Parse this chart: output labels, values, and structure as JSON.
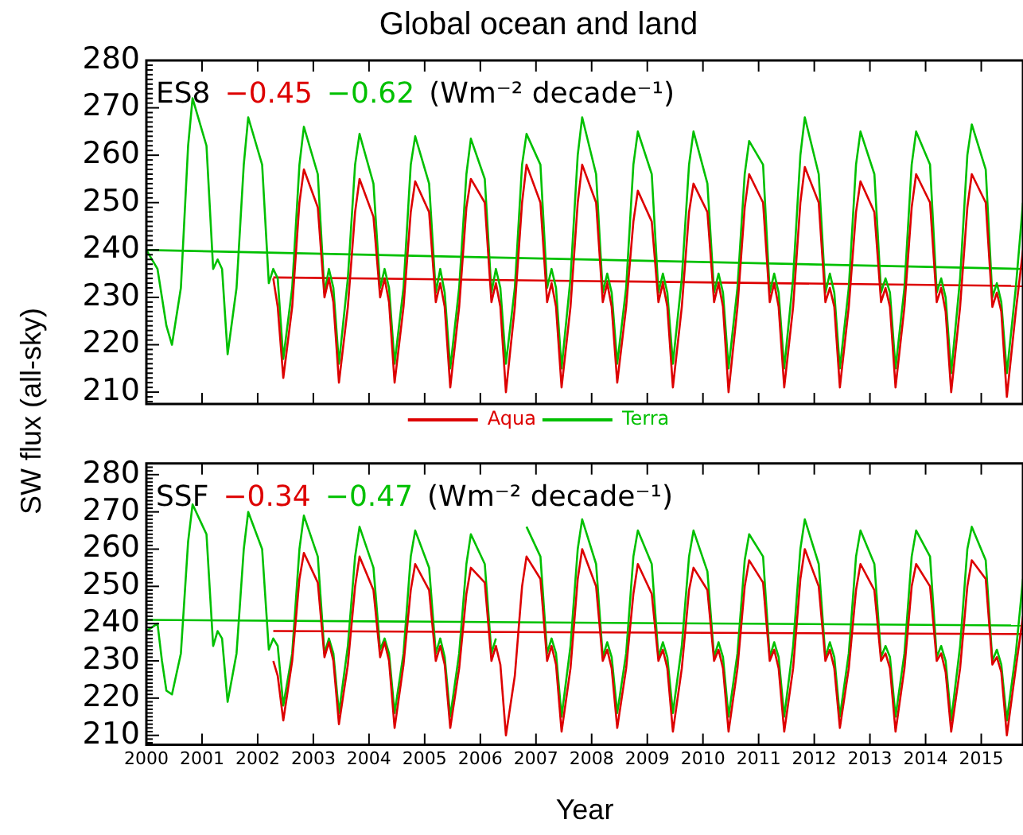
{
  "chart_data": [
    {
      "type": "line",
      "title": "Global ocean and land",
      "ylabel": "SW flux (all-sky)",
      "annotations": [
        "ES8",
        "−0.45",
        "−0.62",
        "(Wm⁻² decade⁻¹)"
      ],
      "xlim": [
        2000,
        2015.75
      ],
      "xticks": [
        2000,
        2001,
        2002,
        2003,
        2004,
        2005,
        2006,
        2007,
        2008,
        2009,
        2010,
        2011,
        2012,
        2013,
        2014,
        2015
      ],
      "ylim": [
        207.5,
        280
      ],
      "yticks": [
        210,
        220,
        230,
        240,
        250,
        260,
        270,
        280
      ],
      "grid": false,
      "legend": "bottom",
      "tick_labels": "y",
      "marker": "none",
      "line_style": "solid",
      "x": [
        2000,
        2000.2,
        2000.28,
        2000.36,
        2000.46,
        2000.62,
        2000.75,
        2000.83,
        2001.08,
        2001.2,
        2001.28,
        2001.36,
        2001.46,
        2001.62,
        2001.75,
        2001.83,
        2002.08,
        2002.2,
        2002.28,
        2002.36,
        2002.46,
        2002.62,
        2002.75,
        2002.83,
        2003.08,
        2003.2,
        2003.28,
        2003.36,
        2003.46,
        2003.62,
        2003.75,
        2003.83,
        2004.08,
        2004.2,
        2004.28,
        2004.36,
        2004.46,
        2004.62,
        2004.75,
        2004.83,
        2005.08,
        2005.2,
        2005.28,
        2005.36,
        2005.46,
        2005.62,
        2005.75,
        2005.83,
        2006.08,
        2006.2,
        2006.28,
        2006.36,
        2006.46,
        2006.62,
        2006.75,
        2006.83,
        2007.08,
        2007.2,
        2007.28,
        2007.36,
        2007.46,
        2007.62,
        2007.75,
        2007.83,
        2008.08,
        2008.2,
        2008.28,
        2008.36,
        2008.46,
        2008.62,
        2008.75,
        2008.83,
        2009.08,
        2009.2,
        2009.28,
        2009.36,
        2009.46,
        2009.62,
        2009.75,
        2009.83,
        2010.08,
        2010.2,
        2010.28,
        2010.36,
        2010.46,
        2010.62,
        2010.75,
        2010.83,
        2011.08,
        2011.2,
        2011.28,
        2011.36,
        2011.46,
        2011.62,
        2011.75,
        2011.83,
        2012.08,
        2012.2,
        2012.28,
        2012.36,
        2012.46,
        2012.62,
        2012.75,
        2012.83,
        2013.08,
        2013.2,
        2013.28,
        2013.36,
        2013.46,
        2013.62,
        2013.75,
        2013.83,
        2014.08,
        2014.2,
        2014.28,
        2014.36,
        2014.46,
        2014.62,
        2014.75,
        2014.83,
        2015.08,
        2015.2,
        2015.28,
        2015.36,
        2015.46,
        2015.62,
        2015.75
      ],
      "series": [
        {
          "name": "Aqua",
          "color": "#dd0000",
          "values": [
            null,
            null,
            null,
            null,
            null,
            null,
            null,
            null,
            null,
            null,
            null,
            null,
            null,
            null,
            null,
            null,
            null,
            null,
            234,
            228,
            213,
            228,
            250,
            257,
            249,
            230,
            234,
            229,
            212,
            228,
            248,
            255,
            247,
            230,
            234,
            229,
            212,
            228,
            248,
            254.5,
            248,
            229,
            233,
            228,
            211,
            228,
            249,
            255,
            250,
            229,
            233,
            228,
            210,
            228,
            250,
            258,
            250,
            229,
            233,
            228,
            211,
            228,
            250,
            258,
            250,
            229,
            233,
            228,
            212,
            228,
            246,
            252.5,
            246,
            229,
            233,
            228,
            211,
            228,
            248,
            254,
            248,
            229,
            233,
            228,
            210,
            228,
            249,
            256,
            250,
            229,
            233,
            228,
            211,
            228,
            250,
            257.5,
            250,
            229,
            232,
            228,
            211,
            228,
            248,
            254.5,
            248,
            229,
            232,
            228,
            211,
            228,
            249,
            256,
            250,
            229,
            232,
            227,
            210,
            228,
            249,
            256,
            250,
            228,
            231,
            227,
            209,
            227,
            240
          ]
        },
        {
          "name": "Terra",
          "color": "#00c000",
          "values": [
            240,
            236,
            230,
            224,
            220,
            232,
            262,
            272,
            262,
            236,
            238,
            236,
            218,
            232,
            258,
            268,
            258,
            233,
            236,
            234,
            217,
            232,
            258,
            266,
            256,
            231,
            236,
            232,
            216,
            234,
            258,
            264.5,
            254,
            232,
            236,
            232,
            216,
            232,
            258,
            264,
            254,
            231,
            236,
            231,
            215,
            232,
            256,
            263.5,
            255,
            231,
            236,
            232,
            216,
            232,
            258,
            264.5,
            258,
            232,
            236,
            232,
            215,
            234,
            260,
            268,
            256,
            231,
            235,
            231,
            216,
            232,
            258,
            265,
            256,
            231,
            235,
            231,
            216,
            234,
            258,
            265,
            254,
            231,
            235,
            231,
            215,
            232,
            256,
            263,
            258,
            231,
            235,
            231,
            215,
            234,
            260,
            268,
            256,
            231,
            235,
            231,
            215,
            232,
            258,
            265,
            256,
            231,
            234,
            231,
            215,
            232,
            258,
            265,
            258,
            231,
            234,
            230,
            214,
            234,
            260,
            266.5,
            257,
            230,
            233,
            229,
            214,
            232,
            250
          ]
        },
        {
          "color": "#dd0000",
          "x": [
            2002.28,
            2015.75
          ],
          "values": [
            234.2,
            232.4
          ]
        },
        {
          "color": "#00c000",
          "x": [
            2000,
            2015.75
          ],
          "values": [
            240,
            236
          ]
        }
      ]
    },
    {
      "type": "line",
      "xlabel": "Year",
      "annotations": [
        "SSF",
        "−0.34",
        "−0.47",
        "(Wm⁻² decade⁻¹)"
      ],
      "xlim": [
        2000,
        2015.75
      ],
      "xticks": [
        2000,
        2001,
        2002,
        2003,
        2004,
        2005,
        2006,
        2007,
        2008,
        2009,
        2010,
        2011,
        2012,
        2013,
        2014,
        2015
      ],
      "ylim": [
        207.5,
        283
      ],
      "yticks": [
        210,
        220,
        230,
        240,
        250,
        260,
        270,
        280
      ],
      "grid": false,
      "marker": "none",
      "line_style": "solid",
      "x": [
        2000,
        2000.2,
        2000.28,
        2000.36,
        2000.46,
        2000.62,
        2000.75,
        2000.83,
        2001.08,
        2001.2,
        2001.28,
        2001.36,
        2001.46,
        2001.62,
        2001.75,
        2001.83,
        2002.08,
        2002.2,
        2002.28,
        2002.36,
        2002.46,
        2002.62,
        2002.75,
        2002.83,
        2003.08,
        2003.2,
        2003.28,
        2003.36,
        2003.46,
        2003.62,
        2003.75,
        2003.83,
        2004.08,
        2004.2,
        2004.28,
        2004.36,
        2004.46,
        2004.62,
        2004.75,
        2004.83,
        2005.08,
        2005.2,
        2005.28,
        2005.36,
        2005.46,
        2005.62,
        2005.75,
        2005.83,
        2006.08,
        2006.2,
        2006.28,
        2006.36,
        2006.46,
        2006.62,
        2006.75,
        2006.83,
        2007.08,
        2007.2,
        2007.28,
        2007.36,
        2007.46,
        2007.62,
        2007.75,
        2007.83,
        2008.08,
        2008.2,
        2008.28,
        2008.36,
        2008.46,
        2008.62,
        2008.75,
        2008.83,
        2009.08,
        2009.2,
        2009.28,
        2009.36,
        2009.46,
        2009.62,
        2009.75,
        2009.83,
        2010.08,
        2010.2,
        2010.28,
        2010.36,
        2010.46,
        2010.62,
        2010.75,
        2010.83,
        2011.08,
        2011.2,
        2011.28,
        2011.36,
        2011.46,
        2011.62,
        2011.75,
        2011.83,
        2012.08,
        2012.2,
        2012.28,
        2012.36,
        2012.46,
        2012.62,
        2012.75,
        2012.83,
        2013.08,
        2013.2,
        2013.28,
        2013.36,
        2013.46,
        2013.62,
        2013.75,
        2013.83,
        2014.08,
        2014.2,
        2014.28,
        2014.36,
        2014.46,
        2014.62,
        2014.75,
        2014.83,
        2015.08,
        2015.2,
        2015.28,
        2015.36,
        2015.46,
        2015.62,
        2015.75
      ],
      "series": [
        {
          "color": "#dd0000",
          "values": [
            null,
            null,
            null,
            null,
            null,
            null,
            null,
            null,
            null,
            null,
            null,
            null,
            null,
            null,
            null,
            null,
            null,
            null,
            230,
            226,
            214,
            230,
            252,
            259,
            251,
            231,
            235,
            230,
            213,
            229,
            250,
            258,
            249,
            231,
            235,
            230,
            212,
            229,
            249,
            256,
            249,
            230,
            234,
            229,
            212,
            228,
            248,
            255,
            251,
            230,
            234,
            229,
            210,
            226,
            250,
            258,
            252,
            230,
            234,
            229,
            211,
            228,
            252,
            260,
            250,
            230,
            233,
            228,
            212,
            228,
            248,
            256,
            248,
            230,
            233,
            228,
            211,
            228,
            249,
            255,
            249,
            230,
            233,
            228,
            211,
            228,
            250,
            257,
            251,
            230,
            233,
            228,
            211,
            228,
            252,
            260,
            250,
            230,
            233,
            228,
            212,
            228,
            249,
            256,
            249,
            230,
            232,
            228,
            211,
            228,
            250,
            256,
            250,
            230,
            232,
            227,
            211,
            228,
            250,
            257,
            252,
            229,
            231,
            227,
            210,
            228,
            242
          ]
        },
        {
          "color": "#00c000",
          "values": [
            238,
            240,
            230,
            222,
            221,
            232,
            262,
            272,
            264,
            234,
            238,
            236,
            219,
            232,
            260,
            270,
            260,
            233,
            236,
            234,
            218,
            232,
            260,
            269,
            258,
            232,
            236,
            232,
            216,
            234,
            258,
            266,
            255,
            233,
            236,
            232,
            216,
            232,
            258,
            265,
            255,
            232,
            236,
            231,
            215,
            232,
            256,
            264,
            256,
            232,
            236,
            null,
            null,
            null,
            null,
            266,
            258,
            232,
            236,
            232,
            215,
            234,
            260,
            268,
            256,
            231,
            235,
            231,
            216,
            232,
            258,
            265,
            256,
            231,
            235,
            231,
            216,
            234,
            258,
            265,
            254,
            231,
            235,
            231,
            215,
            232,
            257,
            264,
            258,
            231,
            235,
            231,
            215,
            234,
            260,
            268,
            256,
            231,
            235,
            231,
            215,
            232,
            258,
            265,
            256,
            231,
            234,
            231,
            215,
            232,
            258,
            265,
            258,
            231,
            234,
            230,
            214,
            234,
            260,
            266,
            257,
            230,
            233,
            229,
            214,
            232,
            252
          ]
        },
        {
          "color": "#dd0000",
          "x": [
            2002.28,
            2015.75
          ],
          "values": [
            238,
            237.2
          ]
        },
        {
          "color": "#00c000",
          "x": [
            2000,
            2015.75
          ],
          "values": [
            241,
            239.5
          ]
        }
      ]
    }
  ]
}
